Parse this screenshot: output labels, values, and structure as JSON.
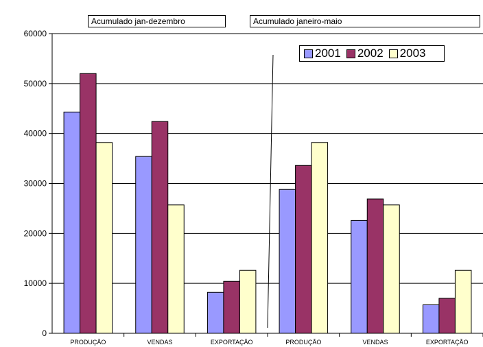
{
  "chart_data": {
    "type": "bar",
    "categories": [
      "PRODUÇÃO",
      "VENDAS",
      "EXPORTAÇÃO",
      "PRODUÇÃO",
      "VENDAS",
      "EXPORTAÇÃO"
    ],
    "series": [
      {
        "name": "2001",
        "color": "#9999ff",
        "values": [
          44300,
          35400,
          8200,
          28800,
          22600,
          5700
        ]
      },
      {
        "name": "2002",
        "color": "#993366",
        "values": [
          52000,
          42400,
          10400,
          33600,
          26900,
          7000
        ]
      },
      {
        "name": "2003",
        "color": "#ffffcc",
        "values": [
          38200,
          25700,
          12600,
          38200,
          25700,
          12600
        ]
      }
    ],
    "group_labels": [
      "Acumulado jan-dezembro",
      "Acumulado janeiro-maio"
    ],
    "ylim": [
      0,
      60000
    ],
    "yticks": [
      0,
      10000,
      20000,
      30000,
      40000,
      50000,
      60000
    ],
    "grid": true,
    "legend_position": "top-right"
  }
}
